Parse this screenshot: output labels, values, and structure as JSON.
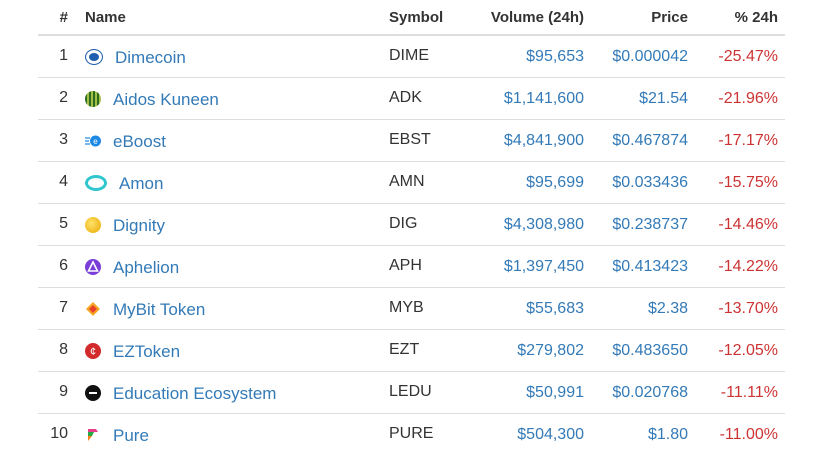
{
  "header": {
    "rank": "#",
    "name": "Name",
    "symbol": "Symbol",
    "volume": "Volume (24h)",
    "price": "Price",
    "change": "% 24h"
  },
  "rows": [
    {
      "rank": "1",
      "name": "Dimecoin",
      "symbol": "DIME",
      "volume": "$95,653",
      "price": "$0.000042",
      "change": "-25.47%",
      "icon": "dimecoin-icon"
    },
    {
      "rank": "2",
      "name": "Aidos Kuneen",
      "symbol": "ADK",
      "volume": "$1,141,600",
      "price": "$21.54",
      "change": "-21.96%",
      "icon": "aidos-kuneen-icon"
    },
    {
      "rank": "3",
      "name": "eBoost",
      "symbol": "EBST",
      "volume": "$4,841,900",
      "price": "$0.467874",
      "change": "-17.17%",
      "icon": "eboost-icon"
    },
    {
      "rank": "4",
      "name": "Amon",
      "symbol": "AMN",
      "volume": "$95,699",
      "price": "$0.033436",
      "change": "-15.75%",
      "icon": "amon-icon"
    },
    {
      "rank": "5",
      "name": "Dignity",
      "symbol": "DIG",
      "volume": "$4,308,980",
      "price": "$0.238737",
      "change": "-14.46%",
      "icon": "dignity-icon"
    },
    {
      "rank": "6",
      "name": "Aphelion",
      "symbol": "APH",
      "volume": "$1,397,450",
      "price": "$0.413423",
      "change": "-14.22%",
      "icon": "aphelion-icon"
    },
    {
      "rank": "7",
      "name": "MyBit Token",
      "symbol": "MYB",
      "volume": "$55,683",
      "price": "$2.38",
      "change": "-13.70%",
      "icon": "mybit-icon"
    },
    {
      "rank": "8",
      "name": "EZToken",
      "symbol": "EZT",
      "volume": "$279,802",
      "price": "$0.483650",
      "change": "-12.05%",
      "icon": "eztoken-icon"
    },
    {
      "rank": "9",
      "name": "Education Ecosystem",
      "symbol": "LEDU",
      "volume": "$50,991",
      "price": "$0.020768",
      "change": "-11.11%",
      "icon": "education-ecosystem-icon"
    },
    {
      "rank": "10",
      "name": "Pure",
      "symbol": "PURE",
      "volume": "$504,300",
      "price": "$1.80",
      "change": "-11.00%",
      "icon": "pure-icon"
    }
  ],
  "colors": {
    "link": "#337ab7",
    "negative": "#cc3333",
    "text": "#333333",
    "border": "#dddddd"
  }
}
